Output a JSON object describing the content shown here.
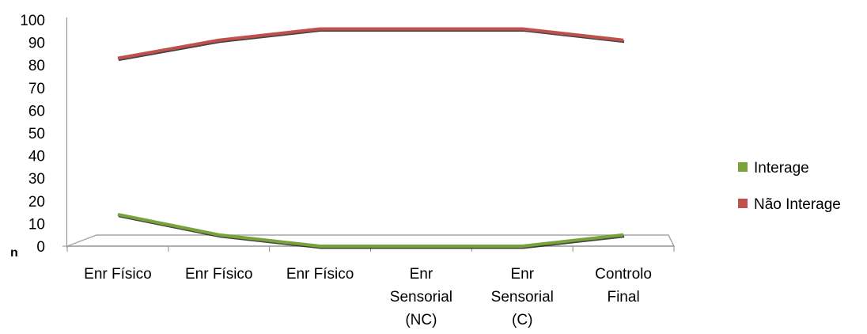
{
  "chart_data": {
    "type": "line",
    "title": "",
    "xlabel": "",
    "ylabel": "n",
    "ylim": [
      0,
      100
    ],
    "yticks": [
      0,
      10,
      20,
      30,
      40,
      50,
      60,
      70,
      80,
      90,
      100
    ],
    "categories": [
      [
        "Enr Físico"
      ],
      [
        "Enr Físico"
      ],
      [
        "Enr Físico"
      ],
      [
        "Enr",
        "Sensorial",
        "(NC)"
      ],
      [
        "Enr",
        "Sensorial",
        "(C)"
      ],
      [
        "Controlo",
        "Final"
      ]
    ],
    "series": [
      {
        "name": "Interage",
        "color": "#77a339",
        "values": [
          14,
          5,
          0,
          0,
          0,
          5
        ]
      },
      {
        "name": "Não Interage",
        "color": "#c0504d",
        "values": [
          83,
          91,
          96,
          96,
          96,
          91
        ]
      }
    ],
    "legend_position": "right",
    "grid": false
  }
}
